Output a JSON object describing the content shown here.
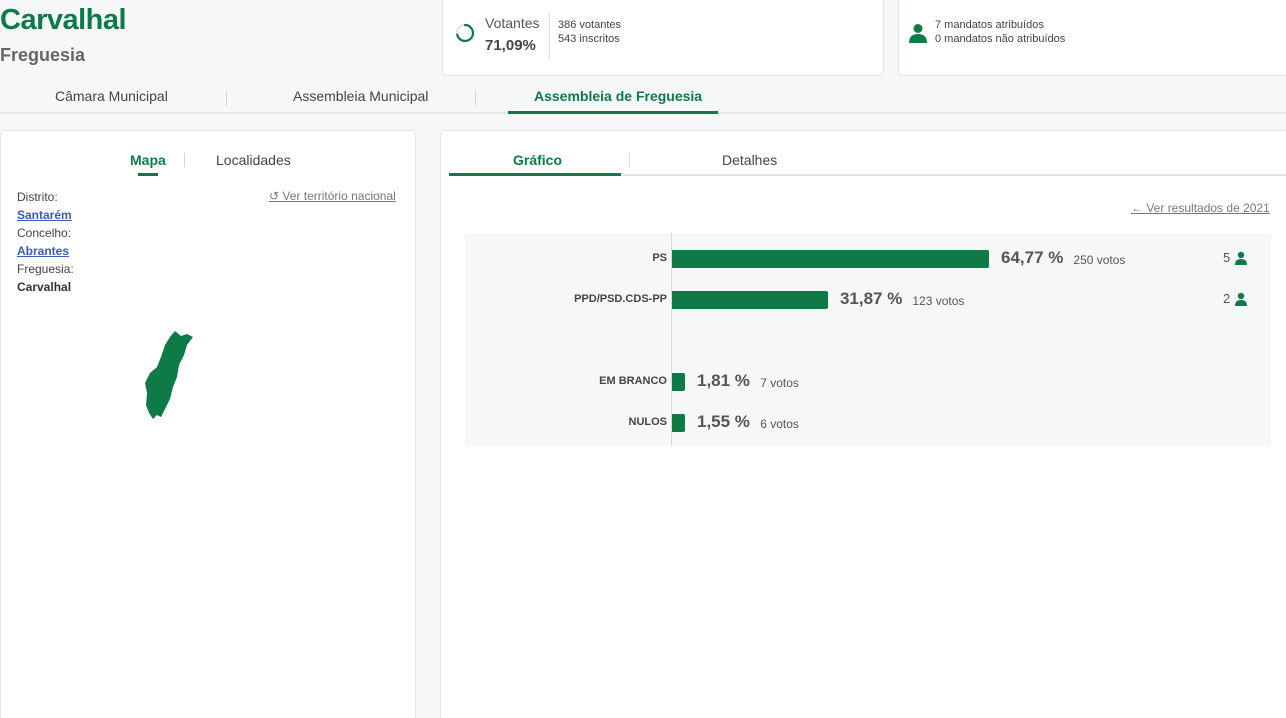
{
  "header": {
    "title": "Carvalhal",
    "subtitle": "Freguesia",
    "votantes": {
      "label": "Votantes",
      "percent": "71,09%",
      "ratio": 0.7109,
      "votantes_text": "386 votantes",
      "inscritos_text": "543 inscritos"
    },
    "mandatos": {
      "atribuidos": "7 mandatos atribuídos",
      "nao_atribuidos": "0 mandatos não atribuídos"
    }
  },
  "main_tabs": [
    {
      "label": "Câmara Municipal",
      "active": false
    },
    {
      "label": "Assembleia Municipal",
      "active": false
    },
    {
      "label": "Assembleia de Freguesia",
      "active": true
    }
  ],
  "left_panel": {
    "tabs": [
      {
        "label": "Mapa",
        "active": true
      },
      {
        "label": "Localidades",
        "active": false
      }
    ],
    "national_link": "Ver território nacional",
    "distrito_label": "Distrito:",
    "distrito_value": "Santarém",
    "concelho_label": "Concelho:",
    "concelho_value": "Abrantes",
    "freguesia_label": "Freguesia:",
    "freguesia_value": "Carvalhal"
  },
  "right_panel": {
    "tabs": [
      {
        "label": "Gráfico",
        "active": true
      },
      {
        "label": "Detalhes",
        "active": false
      }
    ],
    "results_link": "Ver resultados de 2021"
  },
  "chart_data": {
    "type": "bar",
    "orientation": "horizontal",
    "categories": [
      "PS",
      "PPD/PSD.CDS-PP",
      "EM BRANCO",
      "NULOS"
    ],
    "values": [
      64.77,
      31.87,
      1.81,
      1.55
    ],
    "value_labels": [
      "64,77 %",
      "31,87 %",
      "1,81 %",
      "1,55 %"
    ],
    "votes": [
      "250 votos",
      "123 votos",
      "7 votos",
      "6 votos"
    ],
    "seats": [
      "5",
      "2",
      "",
      ""
    ],
    "color": "#0e7a45"
  },
  "colors": {
    "accent": "#0e7a45",
    "link": "#3a5bb8"
  }
}
